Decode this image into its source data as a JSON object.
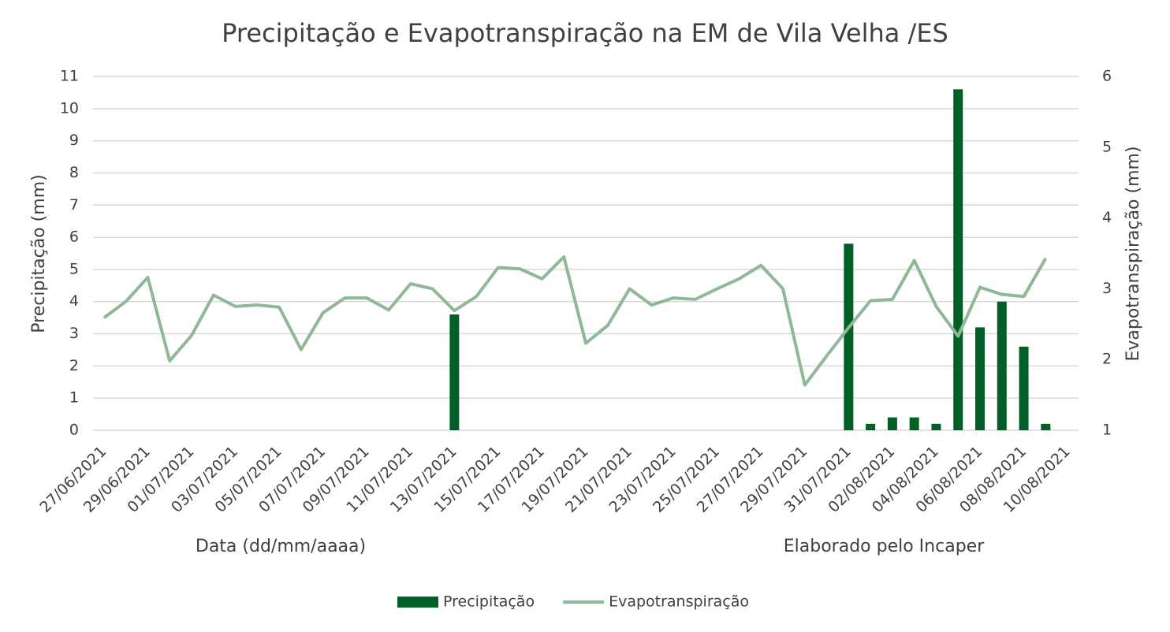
{
  "chart_data": {
    "type": "bar_line",
    "title": "Precipitação e Evapotranspiração na EM de Vila Velha /ES",
    "y_label": "Precipitação (mm)",
    "y2_label": "Evapotranspiração (mm)",
    "x_label": "Data (dd/mm/aaaa)",
    "annotation": "Elaborado pelo Incaper",
    "categories": [
      "27/06/2021",
      null,
      "29/06/2021",
      null,
      "01/07/2021",
      null,
      "03/07/2021",
      null,
      "05/07/2021",
      null,
      "07/07/2021",
      null,
      "09/07/2021",
      null,
      "11/07/2021",
      null,
      "13/07/2021",
      null,
      "15/07/2021",
      null,
      "17/07/2021",
      null,
      "19/07/2021",
      null,
      "21/07/2021",
      null,
      "23/07/2021",
      null,
      "25/07/2021",
      null,
      "27/07/2021",
      null,
      "29/07/2021",
      null,
      "31/07/2021",
      null,
      "02/08/2021",
      null,
      "04/08/2021",
      null,
      "06/08/2021",
      null,
      "08/08/2021",
      null,
      "10/08/2021"
    ],
    "series": [
      {
        "name": "Precipitação",
        "type": "bar",
        "color": "#006028",
        "values": [
          0,
          0,
          0,
          0,
          0,
          0,
          0,
          0,
          0,
          0,
          0,
          0,
          0,
          0,
          0,
          0,
          3.6,
          0,
          0,
          0,
          0,
          0,
          0,
          0,
          0,
          0,
          0,
          0,
          0,
          0,
          0,
          0,
          0,
          0,
          5.8,
          0.2,
          0.4,
          0.4,
          0.2,
          10.6,
          3.2,
          4.0,
          2.6,
          0.2,
          null
        ]
      },
      {
        "name": "Evapotranspiração",
        "type": "line",
        "axis": "y2",
        "color": "#8fb996",
        "values": [
          2.59,
          2.82,
          3.16,
          1.98,
          2.34,
          2.91,
          2.75,
          2.77,
          2.74,
          2.14,
          2.66,
          2.87,
          2.87,
          2.7,
          3.07,
          3.0,
          2.69,
          2.89,
          3.3,
          3.28,
          3.14,
          3.45,
          2.23,
          2.48,
          3.0,
          2.77,
          2.87,
          2.85,
          3.0,
          3.14,
          3.33,
          3.0,
          1.64,
          2.05,
          2.45,
          2.83,
          2.85,
          3.4,
          2.75,
          2.33,
          3.02,
          2.92,
          2.89,
          3.43,
          null
        ]
      }
    ],
    "ylim": [
      0,
      11
    ],
    "yticks": [
      0,
      1,
      2,
      3,
      4,
      5,
      6,
      7,
      8,
      9,
      10,
      11
    ],
    "y2lim": [
      1,
      6
    ],
    "y2ticks": [
      1,
      2,
      3,
      4,
      5,
      6
    ],
    "grid": true,
    "legend": "bottom"
  }
}
